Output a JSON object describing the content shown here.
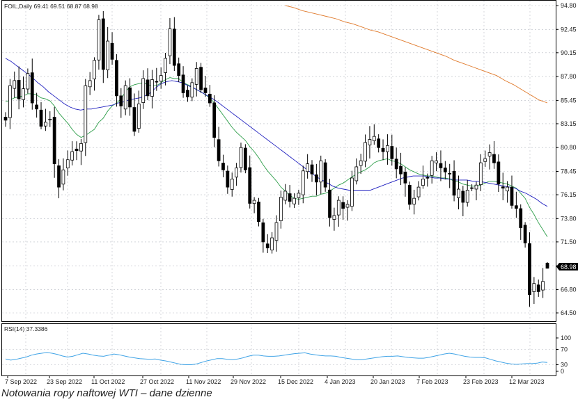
{
  "header": {
    "symbol_info": "FOIL,Daily  69.41 69.51 68.87 68.98",
    "rsi_label": "RSI(14) 37.3386"
  },
  "caption": "Notowania ropy naftowej WTI – dane dzienne",
  "colors": {
    "up_candle_fill": "#ffffff",
    "down_candle_fill": "#000000",
    "ma_fast": "#2e9e4a",
    "ma_mid": "#1f1fbf",
    "ma_slow": "#e07a2c",
    "rsi_line": "#3fa3e6",
    "grid": "#b8bcc4"
  },
  "chart_data": [
    {
      "type": "candlestick",
      "title": "FOIL,Daily",
      "ohlc_last": {
        "open": 69.41,
        "high": 69.51,
        "low": 68.87,
        "close": 68.98
      },
      "current_price_label": "68.98",
      "y_ticks": [
        "94.80",
        "92.45",
        "90.15",
        "87.80",
        "85.45",
        "83.15",
        "80.80",
        "78.45",
        "76.15",
        "73.80",
        "71.50",
        "69.15",
        "66.80",
        "64.50"
      ],
      "ylim": [
        64.5,
        94.8
      ],
      "x_tick_labels": [
        "7 Sep 2022",
        "23 Sep 2022",
        "11 Oct 2022",
        "27 Oct 2022",
        "11 Nov 2022",
        "29 Nov 2022",
        "15 Dec 2022",
        "4 Jan 2023",
        "20 Jan 2023",
        "7 Feb 2023",
        "23 Feb 2023",
        "12 Mar 2023"
      ],
      "grid": true,
      "closes": [
        83.5,
        86.9,
        87.4,
        85.6,
        86.6,
        88.1,
        85.2,
        84.6,
        82.9,
        83.3,
        83.6,
        79.2,
        76.9,
        78.6,
        79.6,
        80.4,
        80.5,
        81.2,
        86.9,
        87.4,
        89.4,
        93.4,
        88.5,
        91.3,
        89.5,
        85.9,
        84.9,
        86.9,
        84.8,
        82.4,
        85.1,
        87.6,
        85.9,
        87.5,
        87.3,
        87.9,
        89.6,
        92.5,
        88.9,
        87.9,
        86.2,
        85.8,
        87.2,
        88.6,
        86.5,
        86.2,
        85.2,
        81.8,
        79.5,
        78.6,
        76.9,
        77.7,
        78.8,
        80.8,
        78.6,
        75.3,
        75.6,
        73.5,
        71.5,
        70.9,
        71.9,
        73.4,
        75.9,
        76.5,
        75.5,
        75.8,
        76.3,
        78.5,
        79.2,
        78.2,
        77.4,
        79.5,
        76.9,
        73.9,
        74.1,
        75.6,
        74.8,
        75.2,
        77.8,
        78.9,
        79.5,
        81.3,
        81.6,
        81.9,
        80.8,
        80.4,
        81.0,
        79.7,
        78.7,
        78.2,
        77.3,
        75.2,
        75.8,
        76.9,
        77.7,
        77.8,
        79.5,
        79.5,
        78.8,
        78.4,
        78.2,
        76.1,
        76.7,
        75.4,
        76.6,
        76.8,
        77.1,
        79.3,
        79.7,
        80.3,
        79.3,
        77.2,
        76.8,
        76.9,
        75.1,
        74.8,
        72.9,
        71.4,
        66.3,
        67.4,
        66.6,
        67.6,
        68.9
      ],
      "series": [
        {
          "name": "Moving average (fast)",
          "values": [
            85.3,
            85.5,
            85.7,
            85.8,
            85.9,
            86.1,
            86.1,
            86.0,
            85.7,
            85.6,
            85.4,
            84.9,
            84.2,
            83.7,
            83.2,
            82.6,
            82.1,
            81.8,
            82.0,
            82.3,
            82.6,
            83.3,
            83.7,
            84.4,
            84.9,
            85.2,
            85.6,
            86.3,
            86.8,
            87.0,
            87.1,
            87.2,
            87.0,
            86.9,
            86.9,
            87.2,
            87.5,
            87.7,
            87.6,
            87.6,
            87.2,
            87.0,
            86.8,
            86.5,
            86.3,
            86.0,
            85.7,
            85.2,
            84.6,
            84.0,
            83.4,
            82.8,
            82.3,
            81.9,
            81.5,
            80.9,
            80.4,
            79.8,
            79.1,
            78.5,
            78.0,
            77.5,
            76.9,
            76.5,
            76.1,
            75.8,
            75.7,
            75.8,
            75.9,
            76.0,
            76.0,
            76.2,
            76.3,
            76.5,
            76.8,
            77.1,
            77.3,
            77.6,
            77.9,
            78.2,
            78.4,
            78.6,
            78.9,
            79.3,
            79.5,
            79.6,
            79.7,
            79.5,
            79.4,
            79.2,
            78.9,
            78.6,
            78.4,
            78.2,
            78.1,
            78.0,
            78.0,
            77.9,
            77.8,
            77.8,
            77.7,
            77.5,
            77.4,
            77.2,
            77.1,
            77.0,
            77.0,
            77.1,
            77.3,
            77.5,
            77.5,
            77.4,
            77.3,
            77.2,
            77.0,
            76.8,
            76.3,
            75.8,
            74.9,
            74.2,
            73.4,
            72.7,
            72.0
          ]
        },
        {
          "name": "Moving average (mid)",
          "values": [
            89.6,
            89.3,
            88.9,
            88.5,
            88.1,
            87.7,
            87.2,
            86.8,
            86.3,
            85.9,
            85.5,
            85.1,
            84.8,
            84.6,
            84.5,
            84.6,
            84.6,
            84.7,
            84.8,
            84.9,
            85.0,
            85.2,
            85.3,
            85.5,
            85.6,
            85.7,
            85.9,
            86.2,
            86.7,
            87.1,
            87.3,
            87.4,
            87.3,
            87.2,
            86.9,
            86.7,
            86.4,
            86.1,
            85.8,
            85.5,
            85.1,
            84.7,
            84.3,
            83.9,
            83.5,
            83.1,
            82.7,
            82.3,
            81.9,
            81.5,
            81.1,
            80.7,
            80.3,
            79.9,
            79.5,
            79.1,
            78.7,
            78.3,
            77.9,
            77.6,
            77.3,
            77.0,
            76.8,
            76.7,
            76.6,
            76.6,
            76.6,
            76.6,
            76.6,
            76.8,
            77.0,
            77.2,
            77.4,
            77.6,
            77.8,
            77.9,
            78.0,
            78.0,
            78.0,
            77.9,
            77.8,
            77.8,
            77.7,
            77.7,
            77.6,
            77.6,
            77.6,
            77.5,
            77.5,
            77.4,
            77.3,
            77.2,
            77.1,
            77.0,
            76.9,
            76.8,
            76.5,
            76.3,
            76.0,
            75.7,
            75.3,
            75.0
          ]
        },
        {
          "name": "Moving average (slow)",
          "values": [
            94.8,
            94.6,
            94.3,
            94.1,
            93.9,
            93.7,
            93.5,
            93.2,
            93.0,
            92.7,
            92.4,
            92.2,
            91.9,
            91.6,
            91.3,
            91.0,
            90.7,
            90.4,
            90.1,
            89.8,
            89.4,
            89.1,
            88.8,
            88.5,
            88.2,
            87.9,
            87.4,
            87.0,
            86.5,
            86.0,
            85.5,
            85.2
          ]
        },
        {
          "name": "RSI(14)",
          "values": [
            45,
            42,
            44,
            47,
            50,
            55,
            58,
            60,
            62,
            60,
            57,
            53,
            50,
            52,
            56,
            60,
            58,
            55,
            53,
            52,
            55,
            58,
            56,
            53,
            50,
            48,
            46,
            45,
            44,
            45,
            42,
            40,
            37,
            34,
            31,
            30,
            30,
            32,
            36,
            40,
            43,
            46,
            46,
            44,
            43,
            45,
            48,
            52,
            55,
            55,
            53,
            52,
            52,
            53,
            55,
            57,
            59,
            60,
            61,
            58,
            56,
            54,
            53,
            53,
            52,
            49,
            47,
            45,
            43,
            43,
            45,
            47,
            49,
            51,
            52,
            52,
            53,
            51,
            49,
            48,
            47,
            47,
            49,
            52,
            55,
            58,
            60,
            58,
            55,
            52,
            50,
            49,
            49,
            48,
            44,
            40,
            37,
            34,
            32,
            31,
            32,
            33,
            33,
            34,
            37,
            36
          ]
        }
      ]
    }
  ],
  "rsi_panel": {
    "y_ticks": [
      "100",
      "70",
      "30",
      "0"
    ],
    "ylim": [
      0,
      100
    ]
  }
}
